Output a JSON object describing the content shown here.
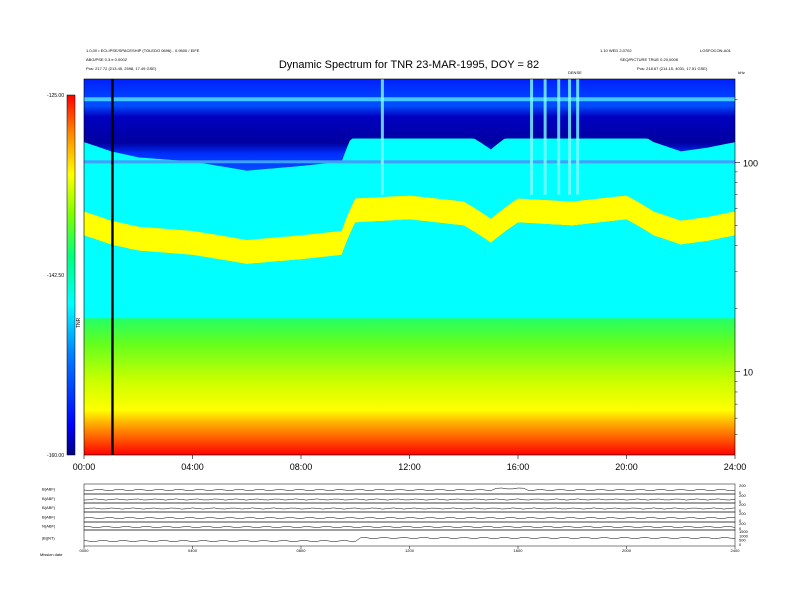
{
  "header": {
    "title": "Dynamic Spectrum for TNR 23-MAR-1995, DOY = 82",
    "left_line1": "1.0,00 • ECLIPSE/SPACESHIP (TOLEDO 0696) - 0.9500 / EIFE",
    "left_line2": "ABG/PSE 0.3 e 0.0002",
    "left_line3": "Pos:   217.72 (213.45, 2598, 17.49 GSE)",
    "right_line1": "1.10 WED 2.0702",
    "right_line2": "SEQ/PICTURE  TRUE 0.20,0006",
    "right_line3": "Pos:   218.67 (214.15, 4031, 17.51 GSE)",
    "right_top": "LOSFOCON-A01",
    "event_mark": "DENSE",
    "unit_khz": "kHz"
  },
  "colorbar": {
    "top_label": "-125.00",
    "mid_label": "-142.50",
    "bottom_label": "-160.00",
    "side_label": "TNR",
    "colors": [
      "#000080",
      "#0000ff",
      "#0080ff",
      "#00ffff",
      "#00ff80",
      "#80ff00",
      "#ffff00",
      "#ff8000",
      "#ff0000"
    ]
  },
  "footer": {
    "left_label": "Mission  date"
  },
  "chart_data": [
    {
      "type": "heatmap",
      "title": "Dynamic Spectrum for TNR 23-MAR-1995, DOY = 82",
      "x_ticks": [
        "00:00",
        "04:00",
        "08:00",
        "12:00",
        "16:00",
        "20:00",
        "24:00"
      ],
      "x_range_hours": [
        0,
        24
      ],
      "y_scale": "log",
      "y_unit": "kHz",
      "y_ticks": [
        "10",
        "100"
      ],
      "y_range_khz": [
        4,
        250
      ],
      "color_range": [
        -160.0,
        -125.0
      ],
      "color_ticks": [
        "-125.00",
        "-142.50",
        "-160.00"
      ],
      "data_gap_hours": 1.05,
      "plasma_line_khz": [
        [
          0,
          52
        ],
        [
          1,
          47
        ],
        [
          2,
          44
        ],
        [
          4,
          42
        ],
        [
          6,
          38
        ],
        [
          8,
          40
        ],
        [
          9.5,
          42
        ],
        [
          10,
          60
        ],
        [
          12,
          62
        ],
        [
          14,
          58
        ],
        [
          15,
          48
        ],
        [
          16,
          60
        ],
        [
          18,
          58
        ],
        [
          20,
          62
        ],
        [
          21,
          52
        ],
        [
          22,
          47
        ],
        [
          23,
          49
        ],
        [
          24,
          52
        ]
      ],
      "bursts_hours": [
        11.0,
        16.5,
        17.0,
        17.5,
        17.9,
        18.2
      ]
    },
    {
      "type": "line",
      "panels": [
        {
          "name": "B(ABF)",
          "right_ticks": [
            "200",
            "0"
          ]
        },
        {
          "name": "B(ABF)",
          "right_ticks": [
            "200",
            "0"
          ]
        },
        {
          "name": "B(ABF)",
          "right_ticks": [
            "200",
            "0"
          ]
        },
        {
          "name": "B(ABF)",
          "right_ticks": [
            "200",
            "0"
          ]
        },
        {
          "name": "N(ABF)",
          "right_ticks": [
            "200",
            "0"
          ]
        },
        {
          "name": "|B|(NT)",
          "right_ticks": [
            "1500",
            "1000",
            "500",
            "0"
          ]
        }
      ],
      "x_ticks": [
        "0000",
        "0400",
        "0800",
        "1200",
        "1600",
        "2000",
        "2400"
      ]
    }
  ]
}
